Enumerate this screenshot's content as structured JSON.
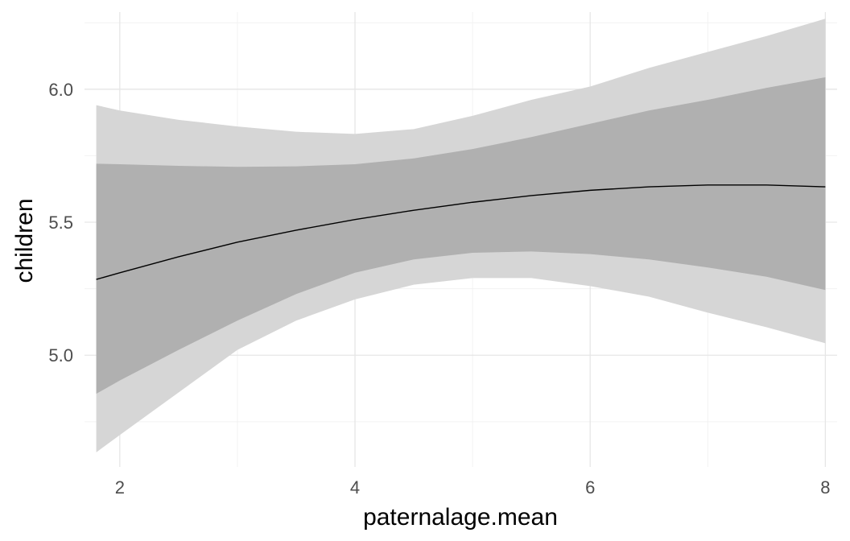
{
  "chart_data": {
    "type": "area",
    "xlabel": "paternalage.mean",
    "ylabel": "children",
    "xlim": [
      1.7,
      8.1
    ],
    "ylim": [
      4.58,
      6.29
    ],
    "x_ticks": [
      2,
      4,
      6,
      8
    ],
    "x_tick_labels": [
      "2",
      "4",
      "6",
      "8"
    ],
    "y_ticks": [
      5.0,
      5.5,
      6.0
    ],
    "y_tick_labels": [
      "5.0",
      "5.5",
      "6.0"
    ],
    "grid": true,
    "legend": "none",
    "x": [
      1.8,
      2.0,
      2.5,
      3.0,
      3.5,
      4.0,
      4.5,
      5.0,
      5.5,
      6.0,
      6.5,
      7.0,
      7.5,
      8.0
    ],
    "series": [
      {
        "role": "estimate",
        "values": [
          5.285,
          5.31,
          5.37,
          5.425,
          5.47,
          5.51,
          5.545,
          5.575,
          5.6,
          5.62,
          5.633,
          5.64,
          5.64,
          5.633
        ]
      },
      {
        "role": "inner_interval",
        "lower": [
          4.855,
          4.905,
          5.02,
          5.13,
          5.23,
          5.31,
          5.36,
          5.385,
          5.39,
          5.38,
          5.36,
          5.33,
          5.295,
          5.245
        ],
        "upper": [
          5.72,
          5.718,
          5.712,
          5.708,
          5.71,
          5.718,
          5.74,
          5.775,
          5.82,
          5.87,
          5.92,
          5.96,
          6.005,
          6.045
        ]
      },
      {
        "role": "outer_interval",
        "lower": [
          4.635,
          4.7,
          4.86,
          5.02,
          5.13,
          5.21,
          5.265,
          5.29,
          5.29,
          5.26,
          5.22,
          5.16,
          5.105,
          5.045
        ],
        "upper": [
          5.94,
          5.92,
          5.885,
          5.86,
          5.84,
          5.832,
          5.85,
          5.9,
          5.96,
          6.01,
          6.08,
          6.14,
          6.2,
          6.265
        ]
      }
    ],
    "colors": {
      "background": "#ffffff",
      "grid_major": "#e6e6e6",
      "grid_minor": "#f2f2f2",
      "outer_band": "#d6d6d6",
      "inner_band": "#b0b0b0",
      "line": "#000000",
      "tick_text": "#4d4d4d",
      "title_text": "#000000"
    }
  }
}
